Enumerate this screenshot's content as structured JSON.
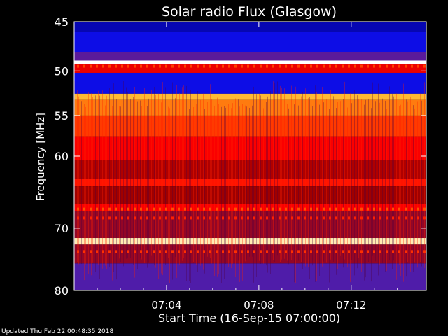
{
  "chart_data": {
    "type": "heatmap",
    "title": "Solar radio Flux (Glasgow)",
    "xlabel": "Start Time (16-Sep-15 07:00:00)",
    "ylabel": "Frequency [MHz]",
    "x_unit": "minutes after 07:00:00",
    "xlim": [
      0,
      15.25
    ],
    "ylim": [
      80,
      45
    ],
    "y_scale": "log",
    "x_ticks": [
      {
        "value": 4,
        "label": "07:04"
      },
      {
        "value": 8,
        "label": "07:08"
      },
      {
        "value": 12,
        "label": "07:12"
      }
    ],
    "y_ticks": [
      {
        "value": 45,
        "label": "45"
      },
      {
        "value": 50,
        "label": "50"
      },
      {
        "value": 55,
        "label": "55"
      },
      {
        "value": 60,
        "label": "60"
      },
      {
        "value": 70,
        "label": "70"
      },
      {
        "value": 80,
        "label": "80"
      }
    ],
    "colormap": [
      "#000080",
      "#1010ff",
      "#4020c0",
      "#801060",
      "#a00000",
      "#ff0000",
      "#ff6000",
      "#ffd040",
      "#ffffff"
    ],
    "intensity_bands": [
      {
        "freq_range": [
          45,
          46
        ],
        "level": 0.05
      },
      {
        "freq_range": [
          46,
          48
        ],
        "level": 0.1
      },
      {
        "freq_range": [
          48,
          48.9
        ],
        "level": 0.3
      },
      {
        "freq_range": [
          48.9,
          49.3
        ],
        "level": 1.0
      },
      {
        "freq_range": [
          49.3,
          50.2
        ],
        "level": 0.6
      },
      {
        "freq_range": [
          50.2,
          52.5
        ],
        "level": 0.1
      },
      {
        "freq_range": [
          52.5,
          53.2
        ],
        "level": 0.85
      },
      {
        "freq_range": [
          53.2,
          55
        ],
        "level": 0.78
      },
      {
        "freq_range": [
          55,
          57.5
        ],
        "level": 0.7
      },
      {
        "freq_range": [
          57.5,
          60.5
        ],
        "level": 0.62
      },
      {
        "freq_range": [
          60.5,
          63
        ],
        "level": 0.52
      },
      {
        "freq_range": [
          63,
          64
        ],
        "level": 0.65
      },
      {
        "freq_range": [
          64,
          66.5
        ],
        "level": 0.5
      },
      {
        "freq_range": [
          66.5,
          67.5
        ],
        "level": 0.62
      },
      {
        "freq_range": [
          67.5,
          71.5
        ],
        "level": 0.45
      },
      {
        "freq_range": [
          71.5,
          72.5
        ],
        "level": 0.95
      },
      {
        "freq_range": [
          72.5,
          75.5
        ],
        "level": 0.45
      },
      {
        "freq_range": [
          75.5,
          80
        ],
        "level": 0.28
      }
    ]
  },
  "footer": "Updated Thu Feb 22 00:48:35 2018"
}
